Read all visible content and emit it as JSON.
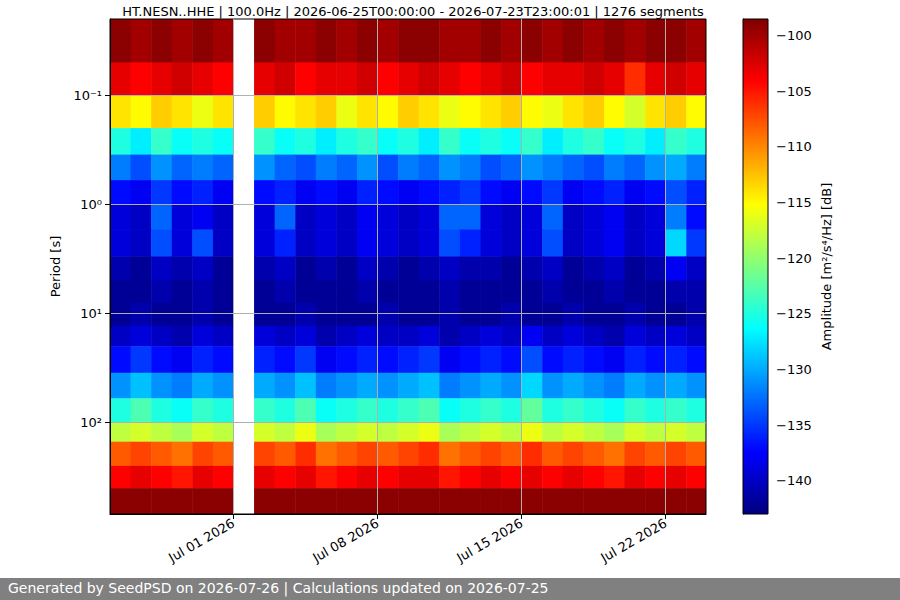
{
  "chart_data": {
    "type": "heatmap",
    "title": "HT.NESN..HHE | 100.0Hz | 2026-06-25T00:00:00 - 2026-07-23T23:00:01 | 1276 segments",
    "annotation": "Generated by SeedPSD on 2026-07-26 | Calculations updated on 2026-07-25",
    "y_label": "Period [s]",
    "colorbar_label": "Amplitude [m²/s⁴/Hz] [dB]",
    "log": "y",
    "grid": true,
    "xlim": [
      "2026-06-25T00:00:00",
      "2026-07-23T23:00:01"
    ],
    "xticks": [
      {
        "value": "2026-07-01",
        "label": "Jul 01 2026"
      },
      {
        "value": "2026-07-08",
        "label": "Jul 08 2026"
      },
      {
        "value": "2026-07-15",
        "label": "Jul 15 2026"
      },
      {
        "value": "2026-07-22",
        "label": "Jul 22 2026"
      }
    ],
    "ylim": [
      0.02,
      690
    ],
    "yticks": [
      {
        "value": 0.1,
        "label": "10⁻¹"
      },
      {
        "value": 1,
        "label": "10⁰"
      },
      {
        "value": 10,
        "label": "10¹"
      },
      {
        "value": 100,
        "label": "10²"
      }
    ],
    "clim": [
      -143,
      -98.5
    ],
    "cticks": [
      {
        "value": -140,
        "label": "−140"
      },
      {
        "value": -135,
        "label": "−135"
      },
      {
        "value": -130,
        "label": "−130"
      },
      {
        "value": -125,
        "label": "−125"
      },
      {
        "value": -120,
        "label": "−120"
      },
      {
        "value": -115,
        "label": "−115"
      },
      {
        "value": -110,
        "label": "−110"
      },
      {
        "value": -105,
        "label": "−105"
      },
      {
        "value": -100,
        "label": "−100"
      }
    ],
    "x": [
      "2026-06-25",
      "2026-06-26",
      "2026-06-27",
      "2026-06-28",
      "2026-06-29",
      "2026-06-30",
      "2026-07-01",
      "2026-07-02",
      "2026-07-03",
      "2026-07-04",
      "2026-07-05",
      "2026-07-06",
      "2026-07-07",
      "2026-07-08",
      "2026-07-09",
      "2026-07-10",
      "2026-07-11",
      "2026-07-12",
      "2026-07-13",
      "2026-07-14",
      "2026-07-15",
      "2026-07-16",
      "2026-07-17",
      "2026-07-18",
      "2026-07-19",
      "2026-07-20",
      "2026-07-21",
      "2026-07-22",
      "2026-07-23",
      "2026-07-23T23:00:01"
    ],
    "y": [
      0.02,
      0.05,
      0.1,
      0.2,
      0.35,
      0.6,
      1,
      1.7,
      3,
      5,
      8,
      13,
      20,
      35,
      60,
      100,
      150,
      250,
      400,
      690
    ],
    "cells": [
      [
        -99,
        -100,
        -99,
        -100,
        -99,
        -100,
        null,
        -99,
        -100,
        -100,
        -99,
        -100,
        -99,
        -100,
        -99,
        -99,
        -100,
        -100,
        -99,
        -100,
        -99,
        -100,
        -99,
        -100,
        -99,
        -100,
        -99,
        -99,
        -100
      ],
      [
        -103,
        -104,
        -103,
        -102,
        -103,
        -104,
        null,
        -103,
        -102,
        -104,
        -103,
        -103,
        -102,
        -104,
        -103,
        -102,
        -103,
        -104,
        -103,
        -102,
        -104,
        -103,
        -103,
        -102,
        -103,
        -106,
        -103,
        -102,
        -103
      ],
      [
        -114,
        -115,
        -113,
        -114,
        -116,
        -114,
        null,
        -113,
        -115,
        -114,
        -113,
        -116,
        -114,
        -115,
        -113,
        -114,
        -116,
        -115,
        -114,
        -113,
        -115,
        -116,
        -114,
        -113,
        -115,
        -117,
        -114,
        -113,
        -115
      ],
      [
        -125,
        -127,
        -124,
        -126,
        -125,
        -126,
        null,
        -124,
        -126,
        -125,
        -127,
        -125,
        -124,
        -126,
        -125,
        -127,
        -124,
        -126,
        -125,
        -126,
        -124,
        -127,
        -125,
        -124,
        -126,
        -125,
        -127,
        -124,
        -125
      ],
      [
        -132,
        -134,
        -131,
        -133,
        -132,
        -133,
        null,
        -131,
        -133,
        -134,
        -132,
        -133,
        -131,
        -134,
        -132,
        -133,
        -131,
        -132,
        -134,
        -133,
        -131,
        -132,
        -133,
        -134,
        -132,
        -133,
        -131,
        -130,
        -132
      ],
      [
        -137,
        -138,
        -135,
        -137,
        -136,
        -138,
        null,
        -137,
        -136,
        -138,
        -137,
        -138,
        -136,
        -137,
        -138,
        -137,
        -136,
        -135,
        -137,
        -138,
        -137,
        -135,
        -138,
        -137,
        -136,
        -138,
        -137,
        -134,
        -136
      ],
      [
        -139,
        -140,
        -133,
        -139,
        -138,
        -140,
        null,
        -139,
        -133,
        -140,
        -139,
        -140,
        -138,
        -139,
        -140,
        -139,
        -133,
        -133,
        -139,
        -140,
        -139,
        -133,
        -140,
        -139,
        -138,
        -140,
        -139,
        -132,
        -137
      ],
      [
        -139,
        -140,
        -134,
        -139,
        -134,
        -140,
        null,
        -139,
        -136,
        -140,
        -139,
        -140,
        -138,
        -139,
        -140,
        -139,
        -134,
        -136,
        -139,
        -140,
        -139,
        -134,
        -140,
        -139,
        -138,
        -140,
        -139,
        -128,
        -135
      ],
      [
        -141,
        -142,
        -140,
        -141,
        -140,
        -142,
        null,
        -141,
        -140,
        -142,
        -141,
        -142,
        -140,
        -141,
        -142,
        -141,
        -140,
        -141,
        -141,
        -142,
        -141,
        -140,
        -142,
        -141,
        -140,
        -142,
        -141,
        -138,
        -140
      ],
      [
        -142,
        -142,
        -141,
        -142,
        -141,
        -142,
        null,
        -142,
        -141,
        -142,
        -142,
        -142,
        -141,
        -142,
        -142,
        -142,
        -141,
        -142,
        -142,
        -142,
        -142,
        -141,
        -142,
        -142,
        -141,
        -142,
        -142,
        -141,
        -141
      ],
      [
        -142,
        -141,
        -142,
        -142,
        -141,
        -142,
        null,
        -142,
        -142,
        -141,
        -142,
        -142,
        -142,
        -141,
        -142,
        -142,
        -141,
        -142,
        -142,
        -141,
        -142,
        -142,
        -141,
        -142,
        -142,
        -141,
        -142,
        -142,
        -141
      ],
      [
        -140,
        -139,
        -140,
        -141,
        -139,
        -140,
        null,
        -139,
        -140,
        -139,
        -141,
        -140,
        -139,
        -140,
        -140,
        -139,
        -141,
        -140,
        -139,
        -140,
        -138,
        -140,
        -139,
        -140,
        -141,
        -139,
        -140,
        -139,
        -140
      ],
      [
        -137,
        -135,
        -137,
        -138,
        -136,
        -137,
        null,
        -136,
        -137,
        -135,
        -138,
        -137,
        -136,
        -137,
        -136,
        -135,
        -138,
        -137,
        -136,
        -137,
        -134,
        -137,
        -136,
        -137,
        -138,
        -136,
        -137,
        -136,
        -137
      ],
      [
        -131,
        -129,
        -131,
        -132,
        -130,
        -131,
        null,
        -130,
        -131,
        -129,
        -132,
        -131,
        -130,
        -131,
        -130,
        -129,
        -132,
        -131,
        -130,
        -131,
        -128,
        -131,
        -130,
        -131,
        -132,
        -130,
        -131,
        -130,
        -131
      ],
      [
        -125,
        -123,
        -125,
        -126,
        -124,
        -125,
        null,
        -124,
        -125,
        -123,
        -126,
        -125,
        -124,
        -125,
        -124,
        -123,
        -126,
        -125,
        -124,
        -125,
        -122,
        -125,
        -124,
        -125,
        -126,
        -124,
        -125,
        -124,
        -125
      ],
      [
        -118,
        -117,
        -118,
        -119,
        -117,
        -118,
        null,
        -117,
        -118,
        -116,
        -119,
        -118,
        -117,
        -118,
        -117,
        -116,
        -119,
        -118,
        -117,
        -118,
        -116,
        -118,
        -117,
        -118,
        -119,
        -117,
        -118,
        -117,
        -118
      ],
      [
        -108,
        -107,
        -108,
        -109,
        -107,
        -108,
        null,
        -107,
        -108,
        -106,
        -109,
        -108,
        -107,
        -108,
        -107,
        -106,
        -109,
        -108,
        -107,
        -108,
        -106,
        -108,
        -107,
        -108,
        -109,
        -107,
        -108,
        -107,
        -108
      ],
      [
        -104,
        -103,
        -104,
        -105,
        -103,
        -104,
        null,
        -103,
        -104,
        -103,
        -105,
        -104,
        -103,
        -104,
        -103,
        -103,
        -105,
        -104,
        -103,
        -104,
        -103,
        -104,
        -103,
        -104,
        -105,
        -103,
        -104,
        -103,
        -104
      ],
      [
        -99,
        -99,
        -99,
        -99,
        -99,
        -99,
        null,
        -99,
        -99,
        -99,
        -99,
        -99,
        -99,
        -99,
        -99,
        -99,
        -99,
        -99,
        -99,
        -99,
        -99,
        -99,
        -99,
        -99,
        -99,
        -99,
        -99,
        -99,
        -99
      ]
    ]
  }
}
